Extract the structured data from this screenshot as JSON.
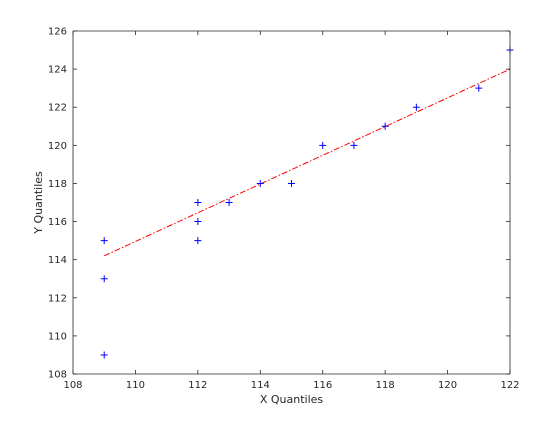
{
  "chart_data": {
    "type": "scatter",
    "title": "",
    "xlabel": "X Quantiles",
    "ylabel": "Y Quantiles",
    "xlim": [
      108,
      122
    ],
    "ylim": [
      108,
      126
    ],
    "xticks": [
      "108",
      "110",
      "112",
      "114",
      "116",
      "118",
      "120",
      "122"
    ],
    "yticks": [
      "108",
      "110",
      "112",
      "114",
      "116",
      "118",
      "120",
      "122",
      "124",
      "126"
    ],
    "grid": false,
    "series": [
      {
        "marker": "+",
        "color": "#0000ff",
        "points": [
          {
            "x": 109,
            "y": 109
          },
          {
            "x": 109,
            "y": 113
          },
          {
            "x": 109,
            "y": 115
          },
          {
            "x": 112,
            "y": 115
          },
          {
            "x": 112,
            "y": 116
          },
          {
            "x": 112,
            "y": 117
          },
          {
            "x": 113,
            "y": 117
          },
          {
            "x": 114,
            "y": 118
          },
          {
            "x": 115,
            "y": 118
          },
          {
            "x": 116,
            "y": 120
          },
          {
            "x": 117,
            "y": 120
          },
          {
            "x": 118,
            "y": 121
          },
          {
            "x": 119,
            "y": 122
          },
          {
            "x": 121,
            "y": 123
          },
          {
            "x": 122,
            "y": 125
          }
        ]
      }
    ],
    "reference_line": {
      "style": "dash-dot",
      "color": "#ff0000",
      "from": {
        "x": 109,
        "y": 114.2
      },
      "to": {
        "x": 122,
        "y": 124.0
      }
    },
    "colors": {
      "axis": "#262626",
      "marker": "#0000ff",
      "line": "#ff0000"
    }
  }
}
